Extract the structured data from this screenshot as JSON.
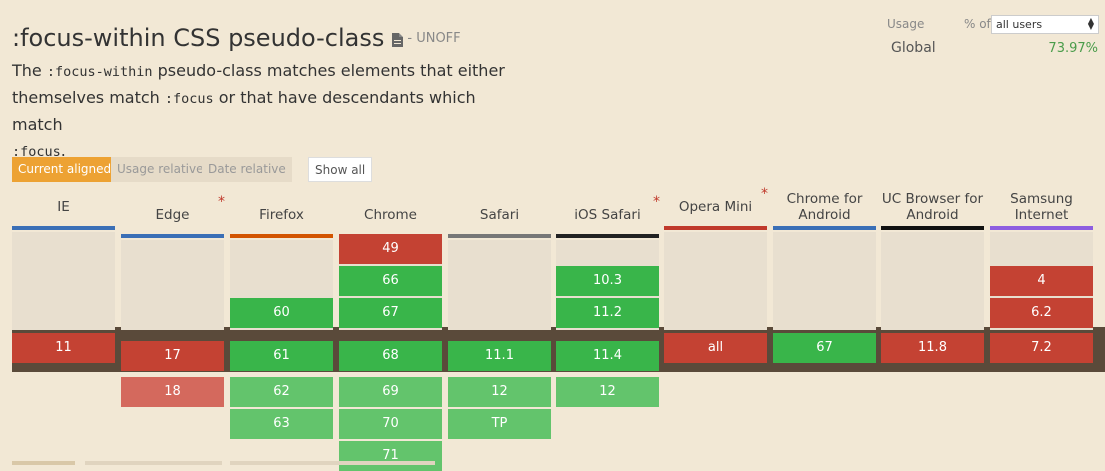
{
  "header": {
    "title": ":focus-within CSS pseudo-class",
    "status": "- UNOFF",
    "description": {
      "p1": "The ",
      "code1": ":focus-within",
      "p2": " pseudo-class matches elements that either themselves match ",
      "code2": ":focus",
      "p3": " or that have descendants which match ",
      "code3": ":focus",
      "p4": "."
    }
  },
  "usage": {
    "label": "Usage",
    "pct_of": "% of",
    "select_value": "all users",
    "global_label": "Global",
    "global_value": "73.97%",
    "global_color": "#4a9c4a"
  },
  "tabs": {
    "current": "Current aligned",
    "relative": "Usage relative",
    "date": "Date relative",
    "show_all": "Show all"
  },
  "browsers": [
    {
      "name": "IE",
      "bar_color": "#3b6fb6",
      "star": false,
      "past": [],
      "current": {
        "v": "11",
        "s": "n"
      },
      "future": []
    },
    {
      "name": "Edge",
      "bar_color": "#3b6fb6",
      "star": true,
      "past": [],
      "current": {
        "v": "17",
        "s": "n"
      },
      "future": [
        {
          "v": "18",
          "s": "nl"
        }
      ]
    },
    {
      "name": "Firefox",
      "bar_color": "#d35400",
      "star": false,
      "past": [
        {
          "v": "60",
          "s": "y"
        }
      ],
      "current": {
        "v": "61",
        "s": "y"
      },
      "future": [
        {
          "v": "62",
          "s": "yl"
        },
        {
          "v": "63",
          "s": "yl"
        }
      ]
    },
    {
      "name": "Chrome",
      "bar_color": "#3b6fb6",
      "star": false,
      "past": [
        {
          "v": "49",
          "s": "n"
        },
        {
          "v": "66",
          "s": "y"
        },
        {
          "v": "67",
          "s": "y"
        }
      ],
      "current": {
        "v": "68",
        "s": "y"
      },
      "future": [
        {
          "v": "69",
          "s": "yl"
        },
        {
          "v": "70",
          "s": "yl"
        },
        {
          "v": "71",
          "s": "yl"
        }
      ]
    },
    {
      "name": "Safari",
      "bar_color": "#777777",
      "star": false,
      "past": [],
      "current": {
        "v": "11.1",
        "s": "y"
      },
      "future": [
        {
          "v": "12",
          "s": "yl"
        },
        {
          "v": "TP",
          "s": "yl"
        }
      ]
    },
    {
      "name": "iOS Safari",
      "bar_color": "#222222",
      "star": true,
      "past": [
        {
          "v": "10.3",
          "s": "y"
        },
        {
          "v": "11.2",
          "s": "y"
        }
      ],
      "current": {
        "v": "11.4",
        "s": "y"
      },
      "future": [
        {
          "v": "12",
          "s": "yl"
        }
      ]
    },
    {
      "name": "Opera Mini",
      "bar_color": "#c0392b",
      "star": true,
      "past": [],
      "current": {
        "v": "all",
        "s": "n"
      },
      "future": []
    },
    {
      "name": "Chrome for Android",
      "bar_color": "#3b6fb6",
      "star": false,
      "past": [],
      "current": {
        "v": "67",
        "s": "y"
      },
      "future": []
    },
    {
      "name": "UC Browser for Android",
      "bar_color": "#111111",
      "star": false,
      "past": [],
      "current": {
        "v": "11.8",
        "s": "n"
      },
      "future": []
    },
    {
      "name": "Samsung Internet",
      "bar_color": "#8e5ee0",
      "star": false,
      "past": [
        {
          "v": "4",
          "s": "n"
        },
        {
          "v": "6.2",
          "s": "n"
        }
      ],
      "current": {
        "v": "7.2",
        "s": "n"
      },
      "future": []
    }
  ]
}
